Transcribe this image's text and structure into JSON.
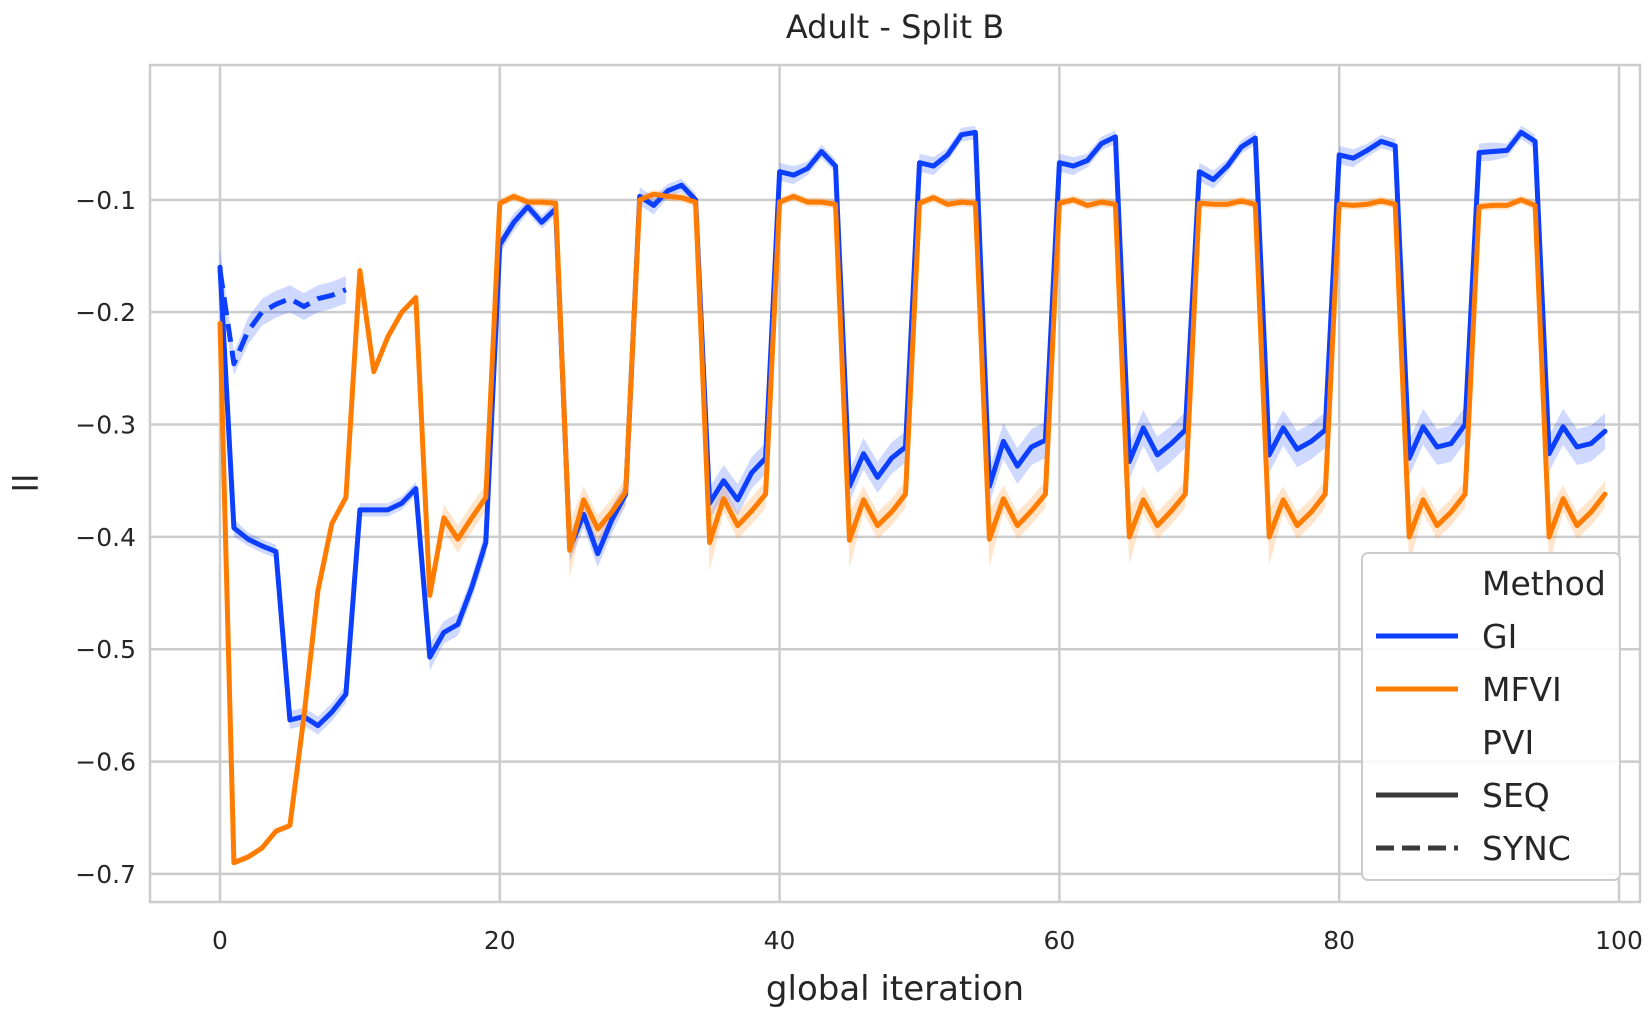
{
  "chart_data": {
    "type": "line",
    "title": "Adult - Split B",
    "xlabel": "global iteration",
    "ylabel": "ll",
    "xlim": [
      -5,
      101.5
    ],
    "ylim": [
      -0.725,
      0.02
    ],
    "xticks": [
      0,
      20,
      40,
      60,
      80,
      100
    ],
    "xtick_labels": [
      "0",
      "20",
      "40",
      "60",
      "80",
      "100"
    ],
    "yticks": [
      -0.1,
      -0.2,
      -0.3,
      -0.4,
      -0.5,
      -0.6,
      -0.7
    ],
    "ytick_labels": [
      "−0.1",
      "−0.2",
      "−0.3",
      "−0.4",
      "−0.5",
      "−0.6",
      "−0.7"
    ],
    "grid": true,
    "legend": {
      "placement": "bottom-right",
      "hue_title": "Method",
      "style_title": "PVI",
      "entries": [
        {
          "label": "GI",
          "color": "#0d3fff",
          "dash": "solid"
        },
        {
          "label": "MFVI",
          "color": "#ff7c00",
          "dash": "solid"
        },
        {
          "label": "SEQ",
          "color": "#3a3a3a",
          "dash": "solid"
        },
        {
          "label": "SYNC",
          "color": "#3a3a3a",
          "dash": "dashed"
        }
      ]
    },
    "series": [
      {
        "method": "GI",
        "pvi": "SEQ",
        "color": "#0d3fff",
        "dash": "solid",
        "x": [
          0,
          1,
          2,
          3,
          4,
          5,
          6,
          7,
          8,
          9,
          10,
          11,
          12,
          13,
          14,
          15,
          16,
          17,
          18,
          19,
          20,
          21,
          22,
          23,
          24,
          25,
          26,
          27,
          28,
          29,
          30,
          31,
          32,
          33,
          34,
          35,
          36,
          37,
          38,
          39,
          40,
          41,
          42,
          43,
          44,
          45,
          46,
          47,
          48,
          49,
          50,
          51,
          52,
          53,
          54,
          55,
          56,
          57,
          58,
          59,
          60,
          61,
          62,
          63,
          64,
          65,
          66,
          67,
          68,
          69,
          70,
          71,
          72,
          73,
          74,
          75,
          76,
          77,
          78,
          79,
          80,
          81,
          82,
          83,
          84,
          85,
          86,
          87,
          88,
          89,
          90,
          91,
          92,
          93,
          94,
          95,
          96,
          97,
          98,
          99
        ],
        "y": [
          -0.16,
          -0.392,
          -0.402,
          -0.408,
          -0.413,
          -0.563,
          -0.56,
          -0.568,
          -0.556,
          -0.54,
          -0.376,
          -0.376,
          -0.376,
          -0.37,
          -0.357,
          -0.507,
          -0.485,
          -0.478,
          -0.445,
          -0.405,
          -0.14,
          -0.12,
          -0.106,
          -0.12,
          -0.108,
          -0.41,
          -0.38,
          -0.415,
          -0.385,
          -0.362,
          -0.097,
          -0.105,
          -0.092,
          -0.087,
          -0.1,
          -0.37,
          -0.35,
          -0.367,
          -0.343,
          -0.33,
          -0.075,
          -0.078,
          -0.072,
          -0.057,
          -0.07,
          -0.355,
          -0.326,
          -0.347,
          -0.33,
          -0.32,
          -0.067,
          -0.07,
          -0.06,
          -0.042,
          -0.04,
          -0.355,
          -0.315,
          -0.337,
          -0.32,
          -0.314,
          -0.067,
          -0.07,
          -0.065,
          -0.05,
          -0.044,
          -0.333,
          -0.303,
          -0.327,
          -0.317,
          -0.305,
          -0.075,
          -0.082,
          -0.07,
          -0.053,
          -0.045,
          -0.327,
          -0.303,
          -0.322,
          -0.315,
          -0.305,
          -0.06,
          -0.063,
          -0.056,
          -0.048,
          -0.052,
          -0.33,
          -0.302,
          -0.32,
          -0.317,
          -0.3,
          -0.058,
          -0.057,
          -0.056,
          -0.04,
          -0.048,
          -0.326,
          -0.302,
          -0.32,
          -0.317,
          -0.306
        ],
        "band": [
          0.006,
          0.008,
          0.006,
          0.006,
          0.006,
          0.008,
          0.008,
          0.008,
          0.008,
          0.008,
          0.006,
          0.006,
          0.006,
          0.006,
          0.006,
          0.012,
          0.01,
          0.01,
          0.01,
          0.012,
          0.008,
          0.008,
          0.006,
          0.006,
          0.006,
          0.012,
          0.012,
          0.012,
          0.012,
          0.01,
          0.008,
          0.008,
          0.006,
          0.006,
          0.006,
          0.014,
          0.014,
          0.014,
          0.014,
          0.014,
          0.008,
          0.008,
          0.006,
          0.006,
          0.006,
          0.014,
          0.014,
          0.014,
          0.014,
          0.014,
          0.008,
          0.008,
          0.006,
          0.006,
          0.006,
          0.016,
          0.016,
          0.016,
          0.016,
          0.016,
          0.008,
          0.008,
          0.006,
          0.006,
          0.006,
          0.016,
          0.016,
          0.016,
          0.016,
          0.016,
          0.008,
          0.008,
          0.006,
          0.006,
          0.006,
          0.016,
          0.016,
          0.016,
          0.016,
          0.016,
          0.008,
          0.008,
          0.006,
          0.006,
          0.006,
          0.016,
          0.016,
          0.016,
          0.016,
          0.016,
          0.008,
          0.008,
          0.006,
          0.006,
          0.006,
          0.016,
          0.016,
          0.016,
          0.016,
          0.016
        ]
      },
      {
        "method": "MFVI",
        "pvi": "SEQ",
        "color": "#ff7c00",
        "dash": "solid",
        "x": [
          0,
          1,
          2,
          3,
          4,
          5,
          6,
          7,
          8,
          9,
          10,
          11,
          12,
          13,
          14,
          15,
          16,
          17,
          18,
          19,
          20,
          21,
          22,
          23,
          24,
          25,
          26,
          27,
          28,
          29,
          30,
          31,
          32,
          33,
          34,
          35,
          36,
          37,
          38,
          39,
          40,
          41,
          42,
          43,
          44,
          45,
          46,
          47,
          48,
          49,
          50,
          51,
          52,
          53,
          54,
          55,
          56,
          57,
          58,
          59,
          60,
          61,
          62,
          63,
          64,
          65,
          66,
          67,
          68,
          69,
          70,
          71,
          72,
          73,
          74,
          75,
          76,
          77,
          78,
          79,
          80,
          81,
          82,
          83,
          84,
          85,
          86,
          87,
          88,
          89,
          90,
          91,
          92,
          93,
          94,
          95,
          96,
          97,
          98,
          99
        ],
        "y": [
          -0.21,
          -0.69,
          -0.685,
          -0.677,
          -0.662,
          -0.657,
          -0.56,
          -0.448,
          -0.388,
          -0.365,
          -0.163,
          -0.253,
          -0.222,
          -0.2,
          -0.187,
          -0.452,
          -0.383,
          -0.402,
          -0.383,
          -0.365,
          -0.103,
          -0.097,
          -0.102,
          -0.102,
          -0.103,
          -0.412,
          -0.367,
          -0.393,
          -0.378,
          -0.36,
          -0.1,
          -0.095,
          -0.097,
          -0.098,
          -0.102,
          -0.405,
          -0.366,
          -0.39,
          -0.377,
          -0.362,
          -0.102,
          -0.097,
          -0.102,
          -0.102,
          -0.104,
          -0.403,
          -0.367,
          -0.39,
          -0.378,
          -0.362,
          -0.103,
          -0.098,
          -0.104,
          -0.102,
          -0.103,
          -0.402,
          -0.366,
          -0.39,
          -0.377,
          -0.362,
          -0.103,
          -0.1,
          -0.105,
          -0.102,
          -0.104,
          -0.4,
          -0.367,
          -0.39,
          -0.377,
          -0.362,
          -0.103,
          -0.104,
          -0.104,
          -0.101,
          -0.104,
          -0.4,
          -0.367,
          -0.39,
          -0.378,
          -0.362,
          -0.104,
          -0.105,
          -0.104,
          -0.101,
          -0.104,
          -0.4,
          -0.367,
          -0.39,
          -0.378,
          -0.362,
          -0.106,
          -0.105,
          -0.105,
          -0.1,
          -0.105,
          -0.4,
          -0.366,
          -0.39,
          -0.378,
          -0.362
        ],
        "band": [
          0.02,
          0.003,
          0.003,
          0.003,
          0.003,
          0.003,
          0.003,
          0.003,
          0.003,
          0.003,
          0.01,
          0.003,
          0.003,
          0.003,
          0.003,
          0.008,
          0.012,
          0.012,
          0.012,
          0.012,
          0.004,
          0.004,
          0.004,
          0.004,
          0.004,
          0.025,
          0.012,
          0.012,
          0.012,
          0.012,
          0.004,
          0.004,
          0.004,
          0.004,
          0.004,
          0.025,
          0.012,
          0.012,
          0.012,
          0.012,
          0.004,
          0.004,
          0.004,
          0.004,
          0.004,
          0.025,
          0.012,
          0.012,
          0.012,
          0.012,
          0.004,
          0.004,
          0.004,
          0.004,
          0.004,
          0.025,
          0.012,
          0.012,
          0.012,
          0.012,
          0.004,
          0.004,
          0.004,
          0.004,
          0.004,
          0.025,
          0.012,
          0.012,
          0.012,
          0.012,
          0.004,
          0.004,
          0.004,
          0.004,
          0.004,
          0.025,
          0.012,
          0.012,
          0.012,
          0.012,
          0.004,
          0.004,
          0.004,
          0.004,
          0.004,
          0.025,
          0.012,
          0.012,
          0.012,
          0.012,
          0.004,
          0.004,
          0.004,
          0.004,
          0.004,
          0.025,
          0.012,
          0.012,
          0.012,
          0.012
        ]
      },
      {
        "method": "GI",
        "pvi": "SYNC",
        "color": "#0d3fff",
        "dash": "dashed",
        "x": [
          0,
          1,
          2,
          3,
          4,
          5,
          6,
          7,
          8,
          9
        ],
        "y": [
          -0.163,
          -0.246,
          -0.217,
          -0.2,
          -0.193,
          -0.188,
          -0.195,
          -0.188,
          -0.185,
          -0.18
        ],
        "band": [
          0.02,
          0.01,
          0.012,
          0.012,
          0.012,
          0.012,
          0.012,
          0.012,
          0.012,
          0.012
        ]
      }
    ]
  }
}
